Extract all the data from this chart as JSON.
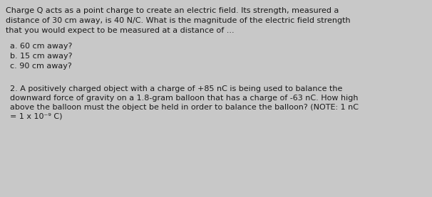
{
  "background_color": "#c8c8c8",
  "text_color": "#1a1a1a",
  "font_size": 8.0,
  "line1": "Charge Q acts as a point charge to create an electric field. Its strength, measured a",
  "line2": "distance of 30 cm away, is 40 N/C. What is the magnitude of the electric field strength",
  "line3": "that you would expect to be measured at a distance of ...",
  "sub_a": "a. 60 cm away?",
  "sub_b": "b. 15 cm away?",
  "sub_c": "c. 90 cm away?",
  "q2_line1": "2. A positively charged object with a charge of +85 nC is being used to balance the",
  "q2_line2": "downward force of gravity on a 1.8-gram balloon that has a charge of -63 nC. How high",
  "q2_line3": "above the balloon must the object be held in order to balance the balloon? (NOTE: 1 nC",
  "q2_line4": "= 1 x 10⁻⁹ C)"
}
